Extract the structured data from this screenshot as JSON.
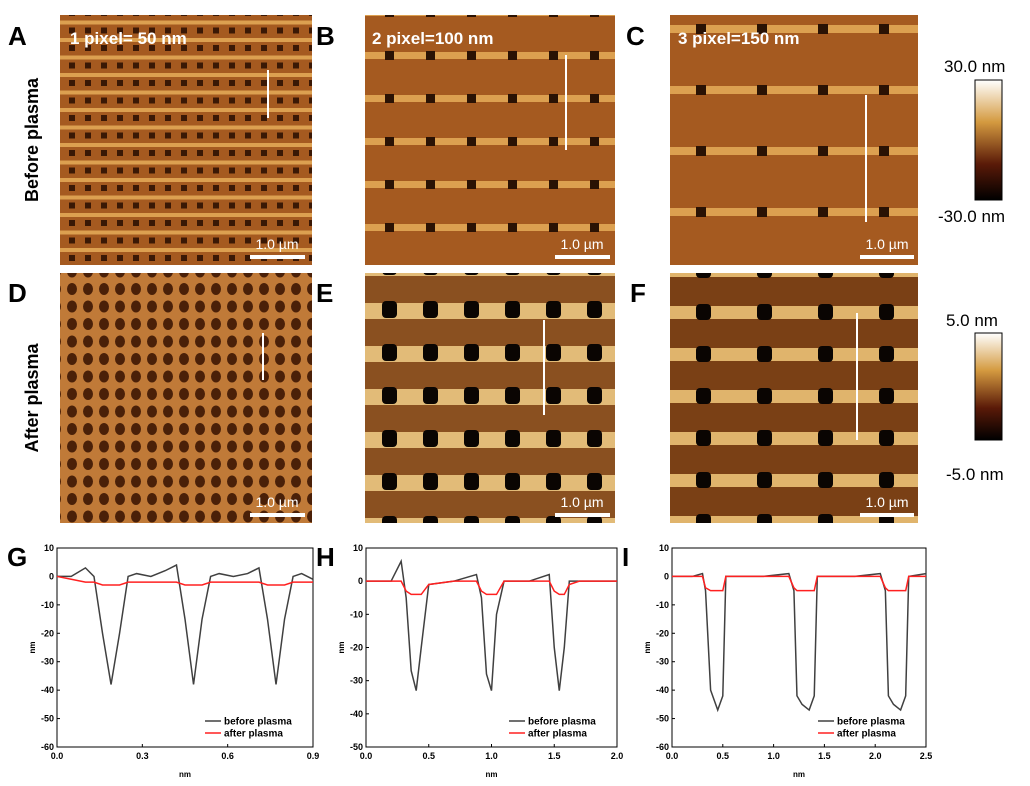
{
  "row_labels": [
    "Before plasma",
    "After plasma"
  ],
  "panels": [
    {
      "letter": "A",
      "label": "1 pixel= 50 nm",
      "scale_bar": "1.0 µm"
    },
    {
      "letter": "B",
      "label": "2 pixel=100 nm",
      "scale_bar": "1.0 µm"
    },
    {
      "letter": "C",
      "label": "3 pixel=150 nm",
      "scale_bar": "1.0 µm"
    },
    {
      "letter": "D",
      "scale_bar": "1.0 µm"
    },
    {
      "letter": "E",
      "scale_bar": "1.0 µm"
    },
    {
      "letter": "F",
      "scale_bar": "1.0 µm"
    }
  ],
  "colorbars": [
    {
      "max": "30.0 nm",
      "min": "-30.0 nm"
    },
    {
      "max": "5.0 nm",
      "min": "-5.0 nm"
    }
  ],
  "chart_data": [
    {
      "type": "line",
      "letter": "G",
      "x_label": "nm",
      "y_label": "nm",
      "xlim": [
        0,
        0.9
      ],
      "xticks": [
        {
          "value": 0,
          "label": "0.0"
        },
        0.3,
        0.6,
        0.9
      ],
      "ylim": [
        -60,
        10
      ],
      "yticks": [
        10,
        0,
        -10,
        -20,
        -30,
        -40,
        -50,
        -60
      ],
      "x": [
        0,
        0.05,
        0.1,
        0.13,
        0.16,
        0.19,
        0.22,
        0.25,
        0.28,
        0.33,
        0.38,
        0.42,
        0.45,
        0.48,
        0.51,
        0.54,
        0.57,
        0.62,
        0.67,
        0.71,
        0.74,
        0.77,
        0.8,
        0.83,
        0.86,
        0.9
      ],
      "series": [
        {
          "name": "before plasma",
          "color": "#404040",
          "values": [
            0,
            0,
            3,
            0,
            -20,
            -38,
            -20,
            0,
            1,
            0,
            2,
            4,
            -15,
            -38,
            -15,
            0,
            1,
            0,
            1,
            3,
            -15,
            -38,
            -15,
            0,
            1,
            -1
          ]
        },
        {
          "name": "after plasma",
          "color": "#ff2020",
          "values": [
            0,
            -1,
            -2,
            -2,
            -3,
            -3,
            -3,
            -2,
            -2,
            -2,
            -2,
            -2,
            -3,
            -3,
            -3,
            -2,
            -2,
            -2,
            -2,
            -2,
            -3,
            -3,
            -3,
            -2,
            -2,
            -2
          ]
        }
      ]
    },
    {
      "type": "line",
      "letter": "H",
      "x_label": "nm",
      "y_label": "nm",
      "xlim": [
        0,
        2
      ],
      "xticks": [
        {
          "value": 0,
          "label": "0.0"
        },
        0.5,
        {
          "value": 1,
          "label": "1.0"
        },
        1.5,
        {
          "value": 2,
          "label": "2.0"
        }
      ],
      "ylim": [
        -50,
        10
      ],
      "yticks": [
        10,
        0,
        -10,
        -20,
        -30,
        -40,
        -50
      ],
      "x": [
        0,
        0.2,
        0.28,
        0.32,
        0.36,
        0.4,
        0.44,
        0.5,
        0.7,
        0.88,
        0.92,
        0.96,
        1.0,
        1.04,
        1.1,
        1.3,
        1.46,
        1.5,
        1.54,
        1.58,
        1.62,
        1.7,
        2.0
      ],
      "series": [
        {
          "name": "before plasma",
          "color": "#404040",
          "values": [
            0,
            0,
            6,
            -5,
            -27,
            -33,
            -20,
            -1,
            0,
            2,
            -5,
            -28,
            -33,
            -10,
            0,
            0,
            2,
            -20,
            -33,
            -20,
            0,
            0,
            0
          ]
        },
        {
          "name": "after plasma",
          "color": "#ff2020",
          "values": [
            0,
            0,
            0,
            -3,
            -4,
            -4,
            -4,
            -1,
            0,
            0,
            -3,
            -4,
            -4,
            -4,
            0,
            0,
            0,
            -3,
            -4,
            -4,
            -1,
            0,
            0
          ]
        }
      ]
    },
    {
      "type": "line",
      "letter": "I",
      "x_label": "nm",
      "y_label": "nm",
      "xlim": [
        0,
        2.5
      ],
      "xticks": [
        {
          "value": 0,
          "label": "0.0"
        },
        0.5,
        {
          "value": 1,
          "label": "1.0"
        },
        1.5,
        {
          "value": 2,
          "label": "2.0"
        },
        2.5
      ],
      "ylim": [
        -60,
        10
      ],
      "yticks": [
        10,
        0,
        -10,
        -20,
        -30,
        -40,
        -50,
        -60
      ],
      "x": [
        0,
        0.2,
        0.3,
        0.33,
        0.38,
        0.45,
        0.5,
        0.53,
        0.6,
        0.9,
        1.15,
        1.2,
        1.23,
        1.28,
        1.35,
        1.4,
        1.43,
        1.5,
        1.8,
        2.05,
        2.1,
        2.13,
        2.18,
        2.25,
        2.3,
        2.33,
        2.5
      ],
      "series": [
        {
          "name": "before plasma",
          "color": "#404040",
          "values": [
            0,
            0,
            1,
            -5,
            -40,
            -47,
            -42,
            0,
            0,
            0,
            1,
            -5,
            -42,
            -45,
            -47,
            -42,
            0,
            0,
            0,
            1,
            -5,
            -42,
            -45,
            -47,
            -42,
            0,
            1
          ]
        },
        {
          "name": "after plasma",
          "color": "#ff2020",
          "values": [
            0,
            0,
            0,
            -4,
            -5,
            -5,
            -5,
            0,
            0,
            0,
            0,
            -4,
            -5,
            -5,
            -5,
            -5,
            0,
            0,
            0,
            0,
            -4,
            -5,
            -5,
            -5,
            -5,
            0,
            0
          ]
        }
      ]
    }
  ]
}
